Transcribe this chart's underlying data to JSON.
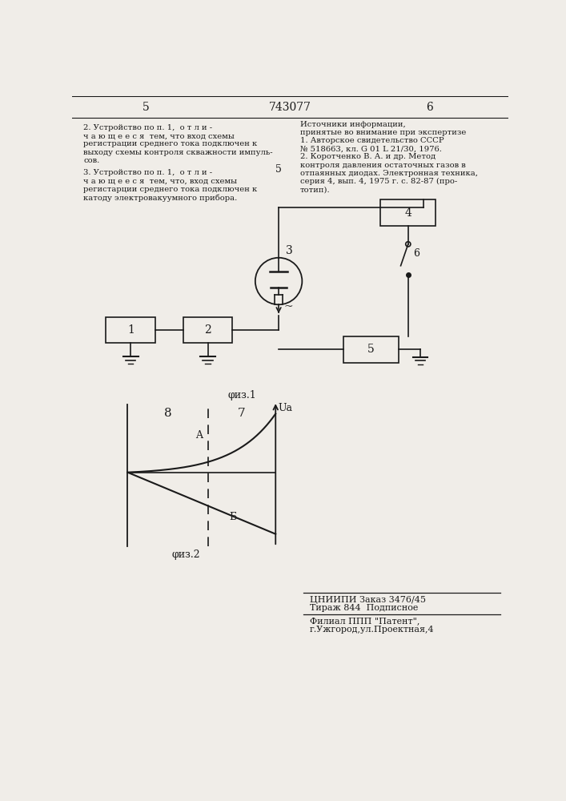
{
  "bg_color": "#f0ede8",
  "line_color": "#1a1a1a",
  "title_text": "743077",
  "page_left": "5",
  "page_right": "6",
  "header_left": [
    "2. Устройство по п. 1,  о т л и -",
    "ч а ю щ е е с я  тем, что вход схемы",
    "регистрации среднего тока подключен к",
    "выходу схемы контроля скважности импуль-",
    "сов."
  ],
  "header_left2": [
    "3. Устройство по п. 1,  о т л и -",
    "ч а ю щ е е с я  тем, что, вход схемы",
    "регистарции среднего тока подключен к",
    "катоду электровакуумного прибора."
  ],
  "header_right": [
    "Источники информации,",
    "принятые во внимание при экспертизе",
    "1. Авторское свидетельство СССР",
    "№ 518663, кл. G 01 L 21/30, 1976.",
    "2. Коротченко В. А. и др. Метод",
    "контроля давления остаточных газов в",
    "отпаянных диодах. Электронная техника,",
    "серия 4, вып. 4, 1975 г. с. 82-87 (про-",
    "тотип)."
  ],
  "footer_right": [
    "ЦНИИПИ Заказ 3476/45",
    "Тираж 844  Подписное"
  ],
  "footer_right2": [
    "Филиал ППП \"Патент\",",
    "г.Ужгород,ул.Проектная,4"
  ]
}
